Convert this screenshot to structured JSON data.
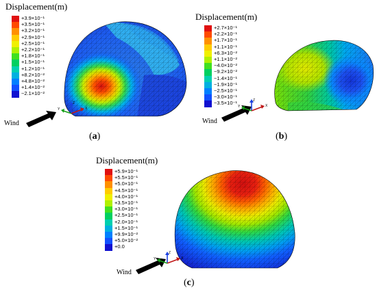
{
  "panels": [
    {
      "id": "a",
      "legend_title": "Displacement(m)",
      "ticks": [
        "+3.9×10⁻¹",
        "+3.5×10⁻¹",
        "+3.2×10⁻¹",
        "+2.9×10⁻¹",
        "+2.5×10⁻¹",
        "+2.2×10⁻¹",
        "+1.8×10⁻¹",
        "+1.5×10⁻¹",
        "+1.2×10⁻¹",
        "+8.2×10⁻²",
        "+4.8×10⁻²",
        "+1.4×10⁻²",
        "−2.1×10⁻²"
      ],
      "caption_open": "(",
      "caption_letter": "a",
      "caption_close": ")",
      "wind_label": "Wind",
      "axes": {
        "y": "Y",
        "z": "Z",
        "x": "X"
      }
    },
    {
      "id": "b",
      "legend_title": "Displacement(m)",
      "ticks": [
        "+2.7×10⁻¹",
        "+2.2×10⁻¹",
        "+1.7×10⁻¹",
        "+1.1×10⁻¹",
        "+6.3×10⁻²",
        "+1.1×10⁻²",
        "−4.0×10⁻²",
        "−9.2×10⁻²",
        "−1.4×10⁻¹",
        "−1.9×10⁻¹",
        "−2.5×10⁻¹",
        "−3.0×10⁻¹",
        "−3.5×10⁻¹"
      ],
      "caption_open": "(",
      "caption_letter": "b",
      "caption_close": ")",
      "wind_label": "Wind",
      "axes": {
        "y": "Y",
        "z": "Z",
        "x": "X"
      }
    },
    {
      "id": "c",
      "legend_title": "Displacement(m)",
      "ticks": [
        "+5.9×10⁻¹",
        "+5.5×10⁻¹",
        "+5.0×10⁻¹",
        "+4.5×10⁻¹",
        "+4.0×10⁻¹",
        "+3.5×10⁻¹",
        "+3.0×10⁻¹",
        "+2.5×10⁻¹",
        "+2.0×10⁻¹",
        "+1.5×10⁻¹",
        "+9.9×10⁻²",
        "+5.0×10⁻²",
        "+0.0"
      ],
      "caption_open": "(",
      "caption_letter": "c",
      "caption_close": ")",
      "wind_label": "Wind",
      "axes": {
        "y": "Y",
        "z": "Z",
        "x": "X"
      }
    }
  ],
  "colormap": [
    "#e01010",
    "#ff4a00",
    "#ff9000",
    "#ffcc00",
    "#f0f000",
    "#b0f000",
    "#40e020",
    "#00d060",
    "#00d0b0",
    "#00b0e0",
    "#0080ff",
    "#1050ff",
    "#1010d0"
  ],
  "icons": {
    "arrow": "wind-arrow-icon",
    "triad": "axis-triad-icon"
  }
}
